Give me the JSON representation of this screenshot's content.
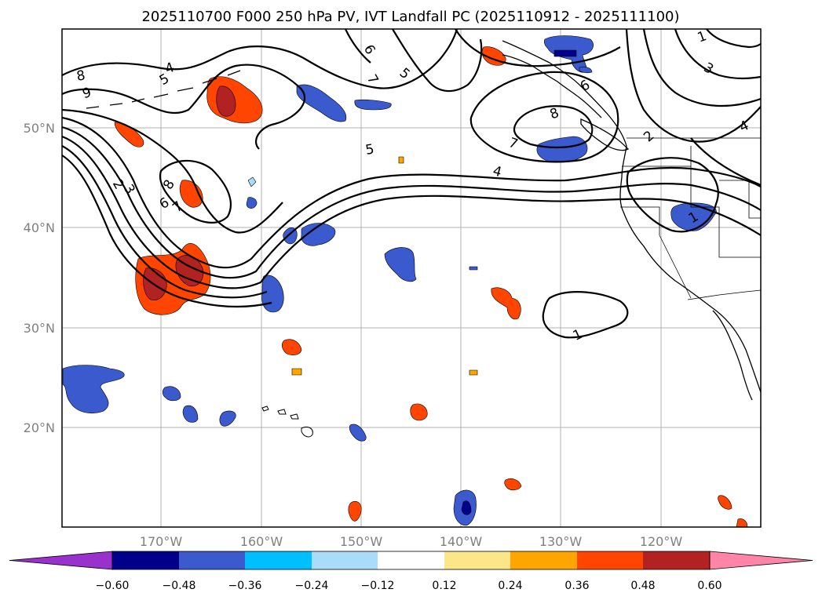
{
  "title": "2025110700 F000 250 hPa PV, IVT Landfall PC (2025110912 - 2025111100)",
  "map": {
    "region": "North Pacific",
    "lon_ticks": [
      "170°W",
      "160°W",
      "150°W",
      "140°W",
      "130°W",
      "120°W"
    ],
    "lat_ticks": [
      "50°N",
      "40°N",
      "30°N",
      "20°N"
    ],
    "contour_labels": [
      "4",
      "5",
      "8",
      "9",
      "6",
      "7",
      "5",
      "6",
      "8",
      "7",
      "5",
      "4",
      "3",
      "1",
      "2",
      "4",
      "1",
      "2",
      "3",
      "8",
      "6",
      "7",
      "1"
    ],
    "colors": {
      "contour": "#000000",
      "grid": "#b0b0b0",
      "coast": "#000000"
    }
  },
  "colorbar": {
    "labels": [
      "−0.60",
      "−0.48",
      "−0.36",
      "−0.24",
      "−0.12",
      "0.12",
      "0.24",
      "0.36",
      "0.48",
      "0.60"
    ],
    "colors": [
      "#9932cc",
      "#00008b",
      "#3a5acd",
      "#00bfff",
      "#a8dcf8",
      "#ffffff",
      "#fde68a",
      "#ffa500",
      "#ff4500",
      "#b22222",
      "#ff85a8"
    ]
  }
}
